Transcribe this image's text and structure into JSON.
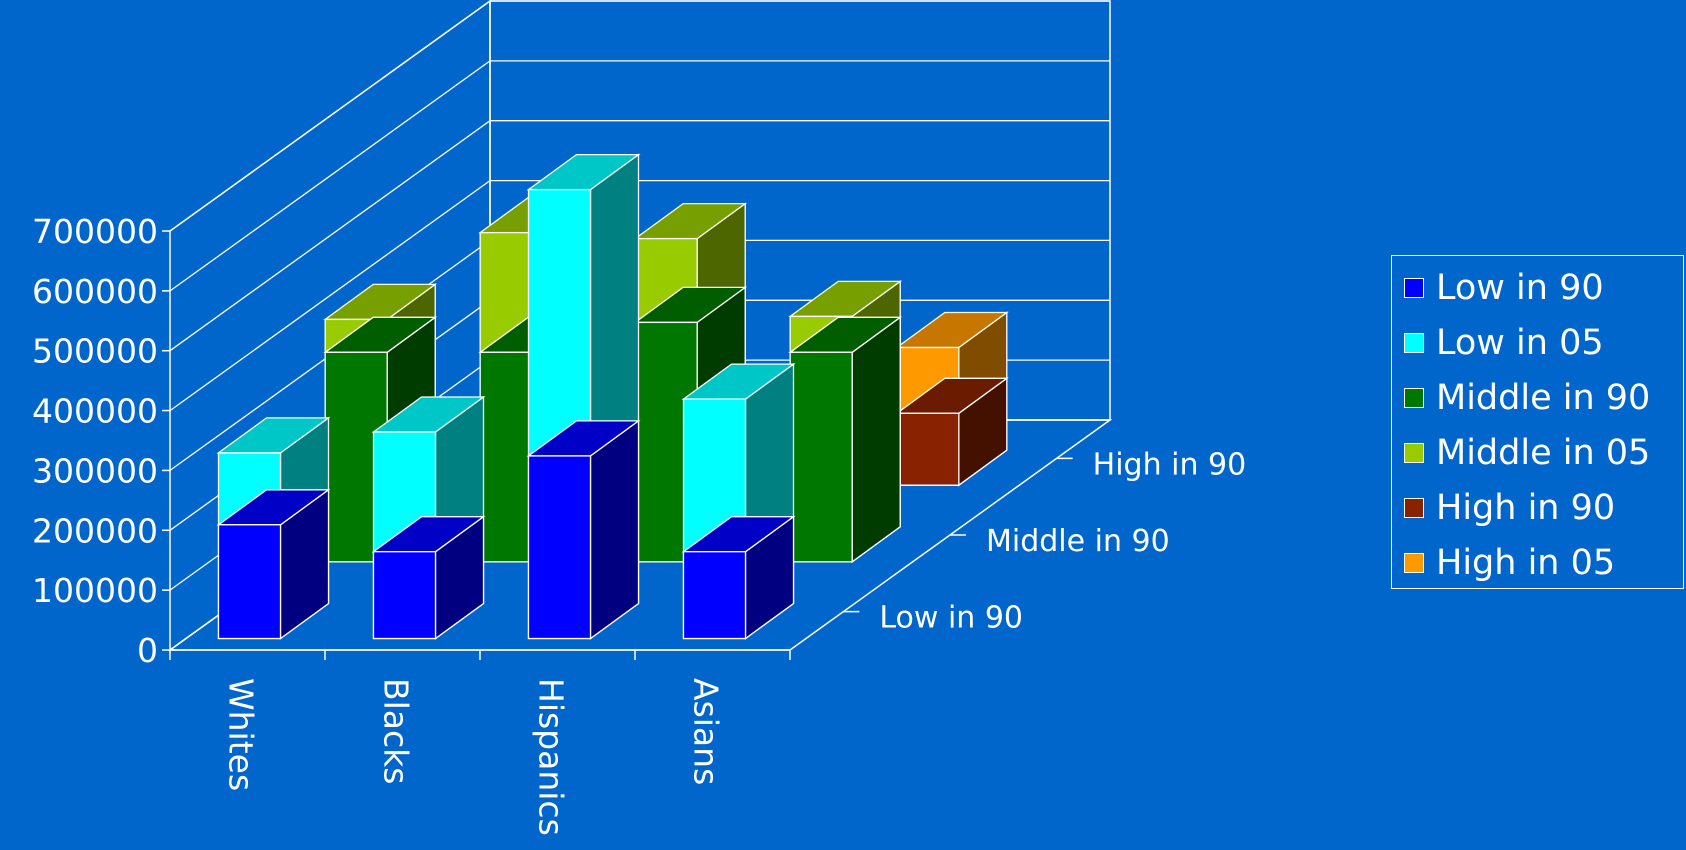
{
  "chart_data": {
    "type": "bar",
    "subtype": "3d-column",
    "title": "",
    "xlabel": "",
    "ylabel": "",
    "categories": [
      "Whites",
      "Blacks",
      "Hispanics",
      "Asians"
    ],
    "depth_categories": [
      "Low in 90",
      "Middle in 90",
      "High in 90"
    ],
    "ylim": [
      0,
      700000
    ],
    "yticks": [
      "0",
      "100000",
      "200000",
      "300000",
      "400000",
      "500000",
      "600000",
      "700000"
    ],
    "grid": true,
    "legend_position": "right",
    "series": [
      {
        "name": "Low in 90",
        "row": "Low in 90",
        "color": "#0000ff",
        "values": [
          190000,
          145000,
          305000,
          145000
        ]
      },
      {
        "name": "Low in 05",
        "row": "Low in 90",
        "color": "#00ffff",
        "values": [
          310000,
          345000,
          750000,
          400000
        ]
      },
      {
        "name": "Middle in 90",
        "row": "Middle in 90",
        "color": "#007700",
        "values": [
          350000,
          350000,
          400000,
          350000
        ]
      },
      {
        "name": "Middle in 05",
        "row": "Middle in 90",
        "color": "#99cc00",
        "values": [
          405000,
          550000,
          540000,
          410000
        ]
      },
      {
        "name": "High in 90",
        "row": "High in 90",
        "color": "#882200",
        "values": [
          0,
          200000,
          0,
          120000
        ]
      },
      {
        "name": "High in 05",
        "row": "High in 90",
        "color": "#ff9900",
        "values": [
          0,
          350000,
          0,
          230000
        ]
      }
    ]
  },
  "legend": {
    "items": [
      {
        "label": "Low in 90",
        "color": "#0000ff"
      },
      {
        "label": "Low in 05",
        "color": "#00ffff"
      },
      {
        "label": "Middle in 90",
        "color": "#007700"
      },
      {
        "label": "Middle in 05",
        "color": "#99cc00"
      },
      {
        "label": "High in 90",
        "color": "#882200"
      },
      {
        "label": "High in 05",
        "color": "#ff9900"
      }
    ]
  }
}
